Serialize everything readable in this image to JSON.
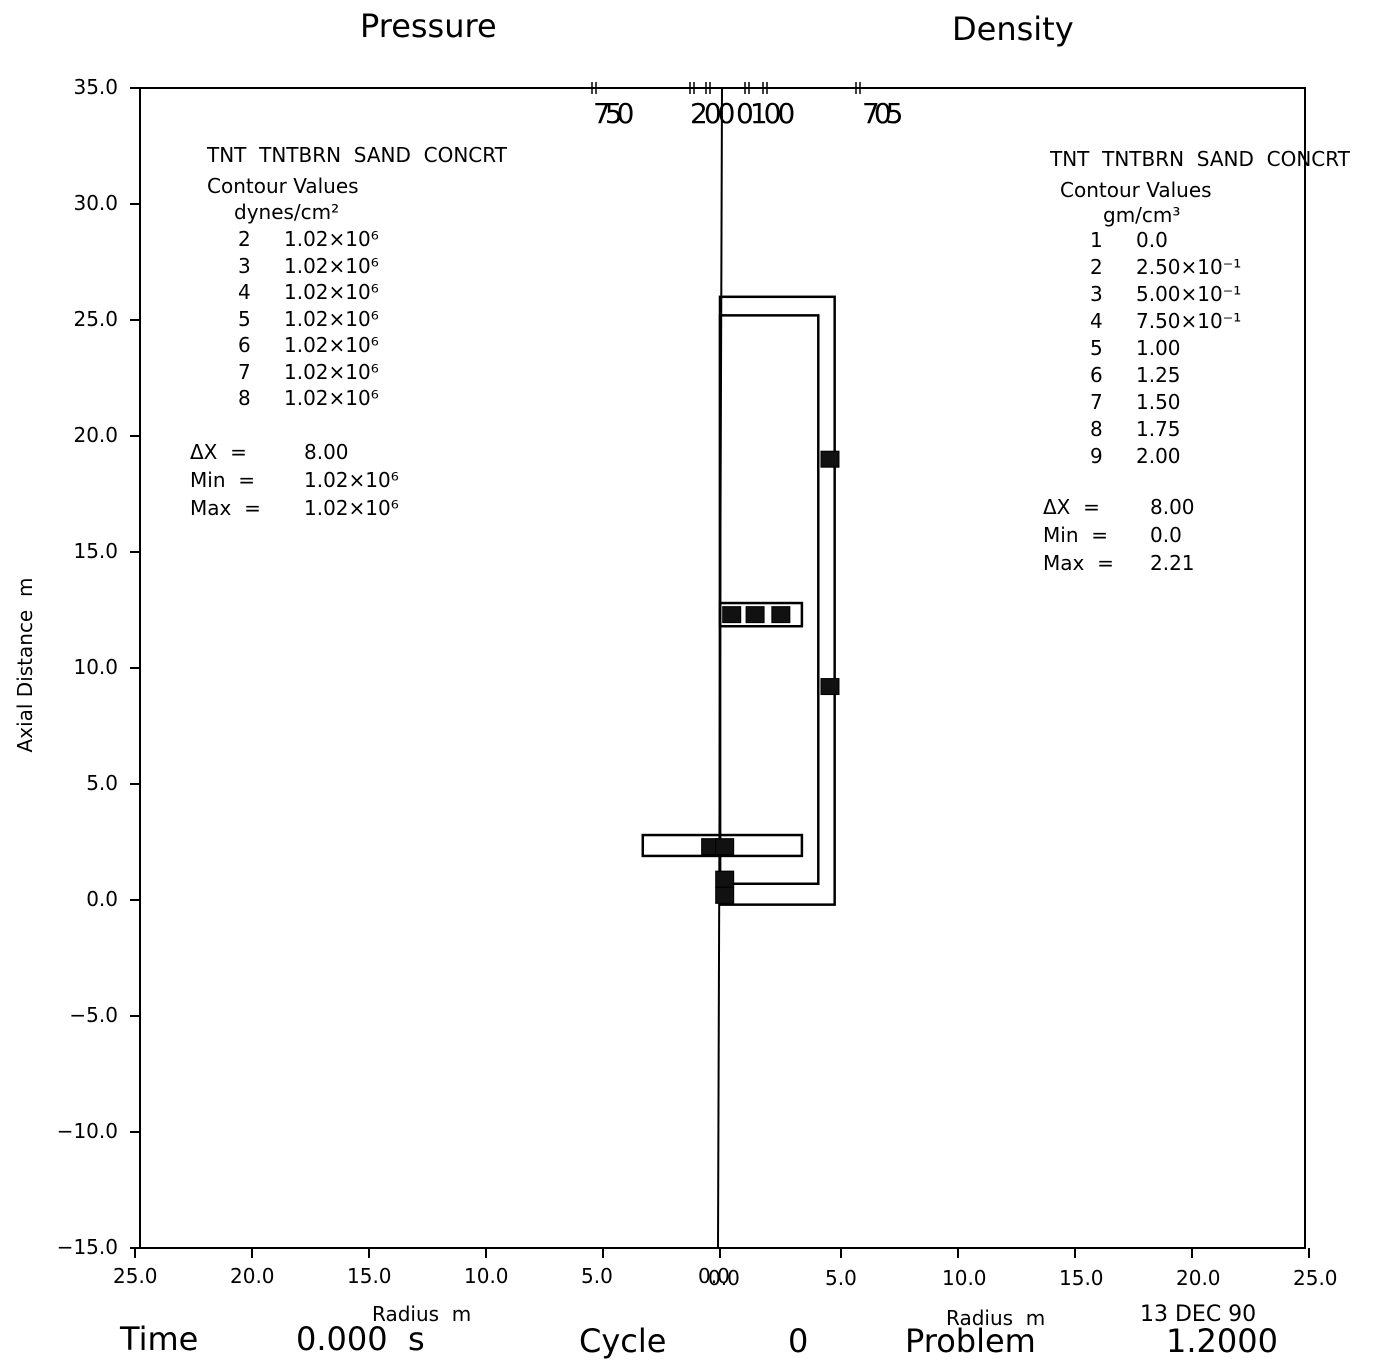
{
  "chart_data": {
    "type": "contour",
    "panels": [
      {
        "title": "Pressure",
        "side": "left",
        "legend": {
          "materials": "TNT  TNTBRN  SAND  CONCRT",
          "header": "Contour Values",
          "units": "dynes/cm²",
          "contours": [
            {
              "n": "2",
              "value": "1.02×10⁶"
            },
            {
              "n": "3",
              "value": "1.02×10⁶"
            },
            {
              "n": "4",
              "value": "1.02×10⁶"
            },
            {
              "n": "5",
              "value": "1.02×10⁶"
            },
            {
              "n": "6",
              "value": "1.02×10⁶"
            },
            {
              "n": "7",
              "value": "1.02×10⁶"
            },
            {
              "n": "8",
              "value": "1.02×10⁶"
            }
          ],
          "stats": [
            {
              "label": "ΔX  =",
              "value": "8.00"
            },
            {
              "label": "Min  =",
              "value": "1.02×10⁶"
            },
            {
              "label": "Max  =",
              "value": "1.02×10⁶"
            }
          ]
        },
        "tick_labels": [
          "750",
          "200"
        ]
      },
      {
        "title": "Density",
        "side": "right",
        "legend": {
          "materials": "TNT  TNTBRN  SAND  CONCRT",
          "header": "Contour Values",
          "units": "gm/cm³",
          "contours": [
            {
              "n": "1",
              "value": "0.0"
            },
            {
              "n": "2",
              "value": "2.50×10⁻¹"
            },
            {
              "n": "3",
              "value": "5.00×10⁻¹"
            },
            {
              "n": "4",
              "value": "7.50×10⁻¹"
            },
            {
              "n": "5",
              "value": "1.00"
            },
            {
              "n": "6",
              "value": "1.25"
            },
            {
              "n": "7",
              "value": "1.50"
            },
            {
              "n": "8",
              "value": "1.75"
            },
            {
              "n": "9",
              "value": "2.00"
            }
          ],
          "stats": [
            {
              "label": "ΔX  =",
              "value": "8.00"
            },
            {
              "label": "Min  =",
              "value": "0.0"
            },
            {
              "label": "Max  =",
              "value": "2.21"
            }
          ]
        },
        "tick_labels": [
          "0100",
          "705"
        ]
      }
    ],
    "y_axis": {
      "label": "Axial Distance  m",
      "range": [
        -15,
        35
      ],
      "ticks": [
        "35.0",
        "30.0",
        "25.0",
        "20.0",
        "15.0",
        "10.0",
        "5.0",
        "0.0",
        "−5.0",
        "−10.0",
        "−15.0"
      ]
    },
    "x_axis": {
      "label_left": "Radius  m",
      "label_right": "Radius  m",
      "left_range": [
        25,
        0
      ],
      "right_range": [
        0,
        25
      ],
      "left_ticks": [
        "25.0",
        "20.0",
        "15.0",
        "10.0",
        "5.0",
        "0.0"
      ],
      "right_ticks": [
        "0.0",
        "5.0",
        "10.0",
        "15.0",
        "20.0",
        "25.0"
      ]
    },
    "footer": {
      "date": "13 DEC 90",
      "time_label": "Time",
      "time_value": "0.000  s",
      "cycle_label": "Cycle",
      "cycle_value": "0",
      "problem_label": "Problem",
      "problem_value": "1.2000"
    },
    "geometry_outlines_m": [
      {
        "name": "outer-wall",
        "r": [
          0,
          4.9
        ],
        "z": [
          -0.2,
          26.0
        ]
      },
      {
        "name": "inner-wall",
        "r": [
          0,
          4.2
        ],
        "z": [
          0.7,
          25.2
        ]
      },
      {
        "name": "shelf-upper",
        "r": [
          0,
          3.5
        ],
        "z": [
          11.8,
          12.8
        ]
      },
      {
        "name": "shelf-lower",
        "r": [
          -3.3,
          3.5
        ],
        "z": [
          1.9,
          2.8
        ]
      }
    ],
    "contour_markers_m": [
      {
        "r": 4.7,
        "z": 19.0
      },
      {
        "r": 4.7,
        "z": 9.2
      },
      {
        "r": 0.5,
        "z": 12.3
      },
      {
        "r": 1.5,
        "z": 12.3
      },
      {
        "r": 2.6,
        "z": 12.3
      },
      {
        "r": -0.4,
        "z": 2.3
      },
      {
        "r": 0.2,
        "z": 2.3
      },
      {
        "r": 0.2,
        "z": 0.9
      },
      {
        "r": 0.2,
        "z": 0.2
      }
    ]
  }
}
